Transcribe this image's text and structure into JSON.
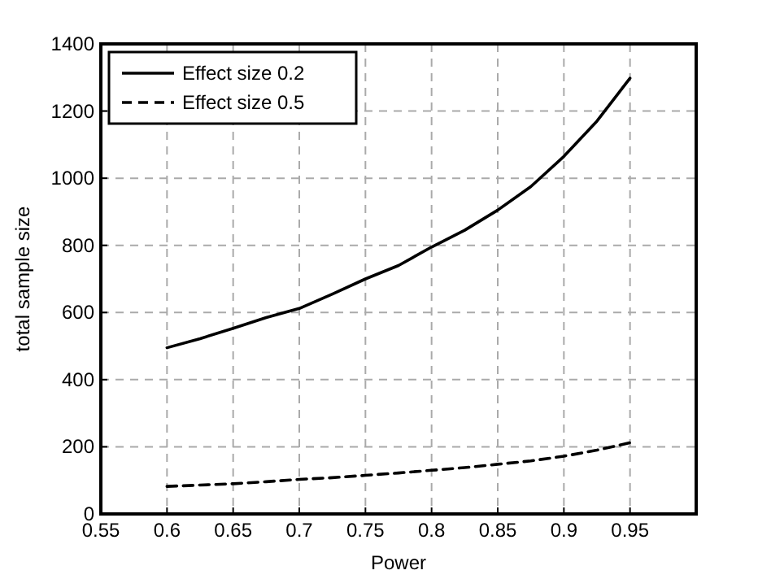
{
  "chart_data": {
    "type": "line",
    "xlabel": "Power",
    "ylabel": "total sample size",
    "xlim": [
      0.55,
      1.0
    ],
    "xticks": [
      0.55,
      0.6,
      0.65,
      0.7,
      0.75,
      0.8,
      0.85,
      0.9,
      0.95
    ],
    "ylim": [
      0,
      1400
    ],
    "yticks": [
      0,
      200,
      400,
      600,
      800,
      1000,
      1200,
      1400
    ],
    "grid": true,
    "legend": "top left",
    "x": [
      0.6,
      0.625,
      0.65,
      0.675,
      0.7,
      0.725,
      0.75,
      0.775,
      0.8,
      0.825,
      0.85,
      0.875,
      0.9,
      0.925,
      0.95
    ],
    "series": [
      {
        "name": "Effect size 0.2",
        "color": "#000000",
        "line_style": "solid",
        "values": [
          495,
          522,
          553,
          585,
          612,
          655,
          700,
          740,
          795,
          845,
          905,
          975,
          1065,
          1170,
          1298
        ]
      },
      {
        "name": "Effect size 0.5",
        "color": "#000000",
        "line_style": "dashed",
        "values": [
          82,
          86,
          90,
          96,
          103,
          108,
          115,
          122,
          130,
          138,
          148,
          158,
          172,
          190,
          212
        ]
      }
    ]
  }
}
